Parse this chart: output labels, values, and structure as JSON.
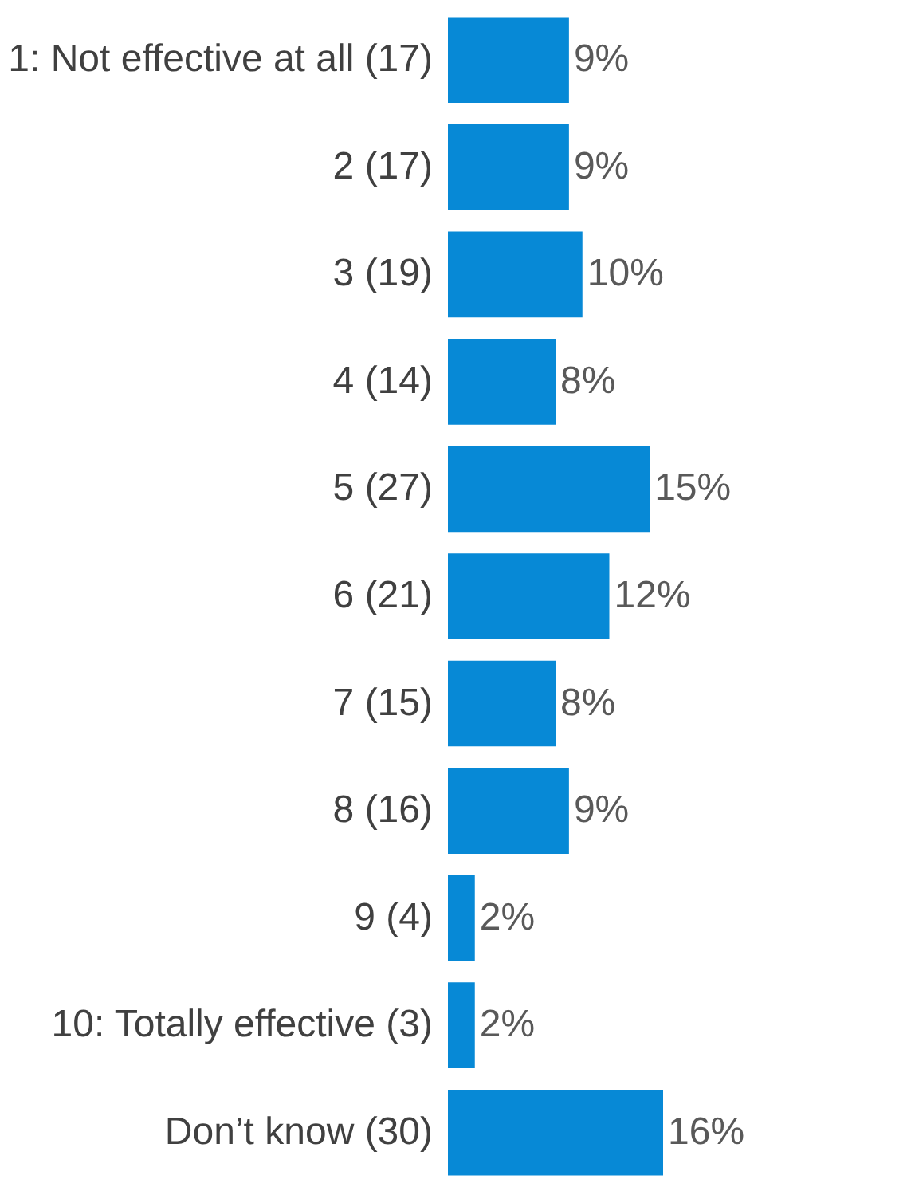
{
  "chart_data": {
    "type": "bar",
    "orientation": "horizontal",
    "categories": [
      "1: Not effective at all (17)",
      "2 (17)",
      "3 (19)",
      "4 (14)",
      "5 (27)",
      "6 (21)",
      "7 (15)",
      "8 (16)",
      "9 (4)",
      "10: Totally effective (3)",
      "Don’t know (30)"
    ],
    "values": [
      9,
      9,
      10,
      8,
      15,
      12,
      8,
      9,
      2,
      2,
      16
    ],
    "value_labels": [
      "9%",
      "9%",
      "10%",
      "8%",
      "15%",
      "12%",
      "8%",
      "9%",
      "2%",
      "2%",
      "16%"
    ],
    "color": "#0789d6"
  }
}
